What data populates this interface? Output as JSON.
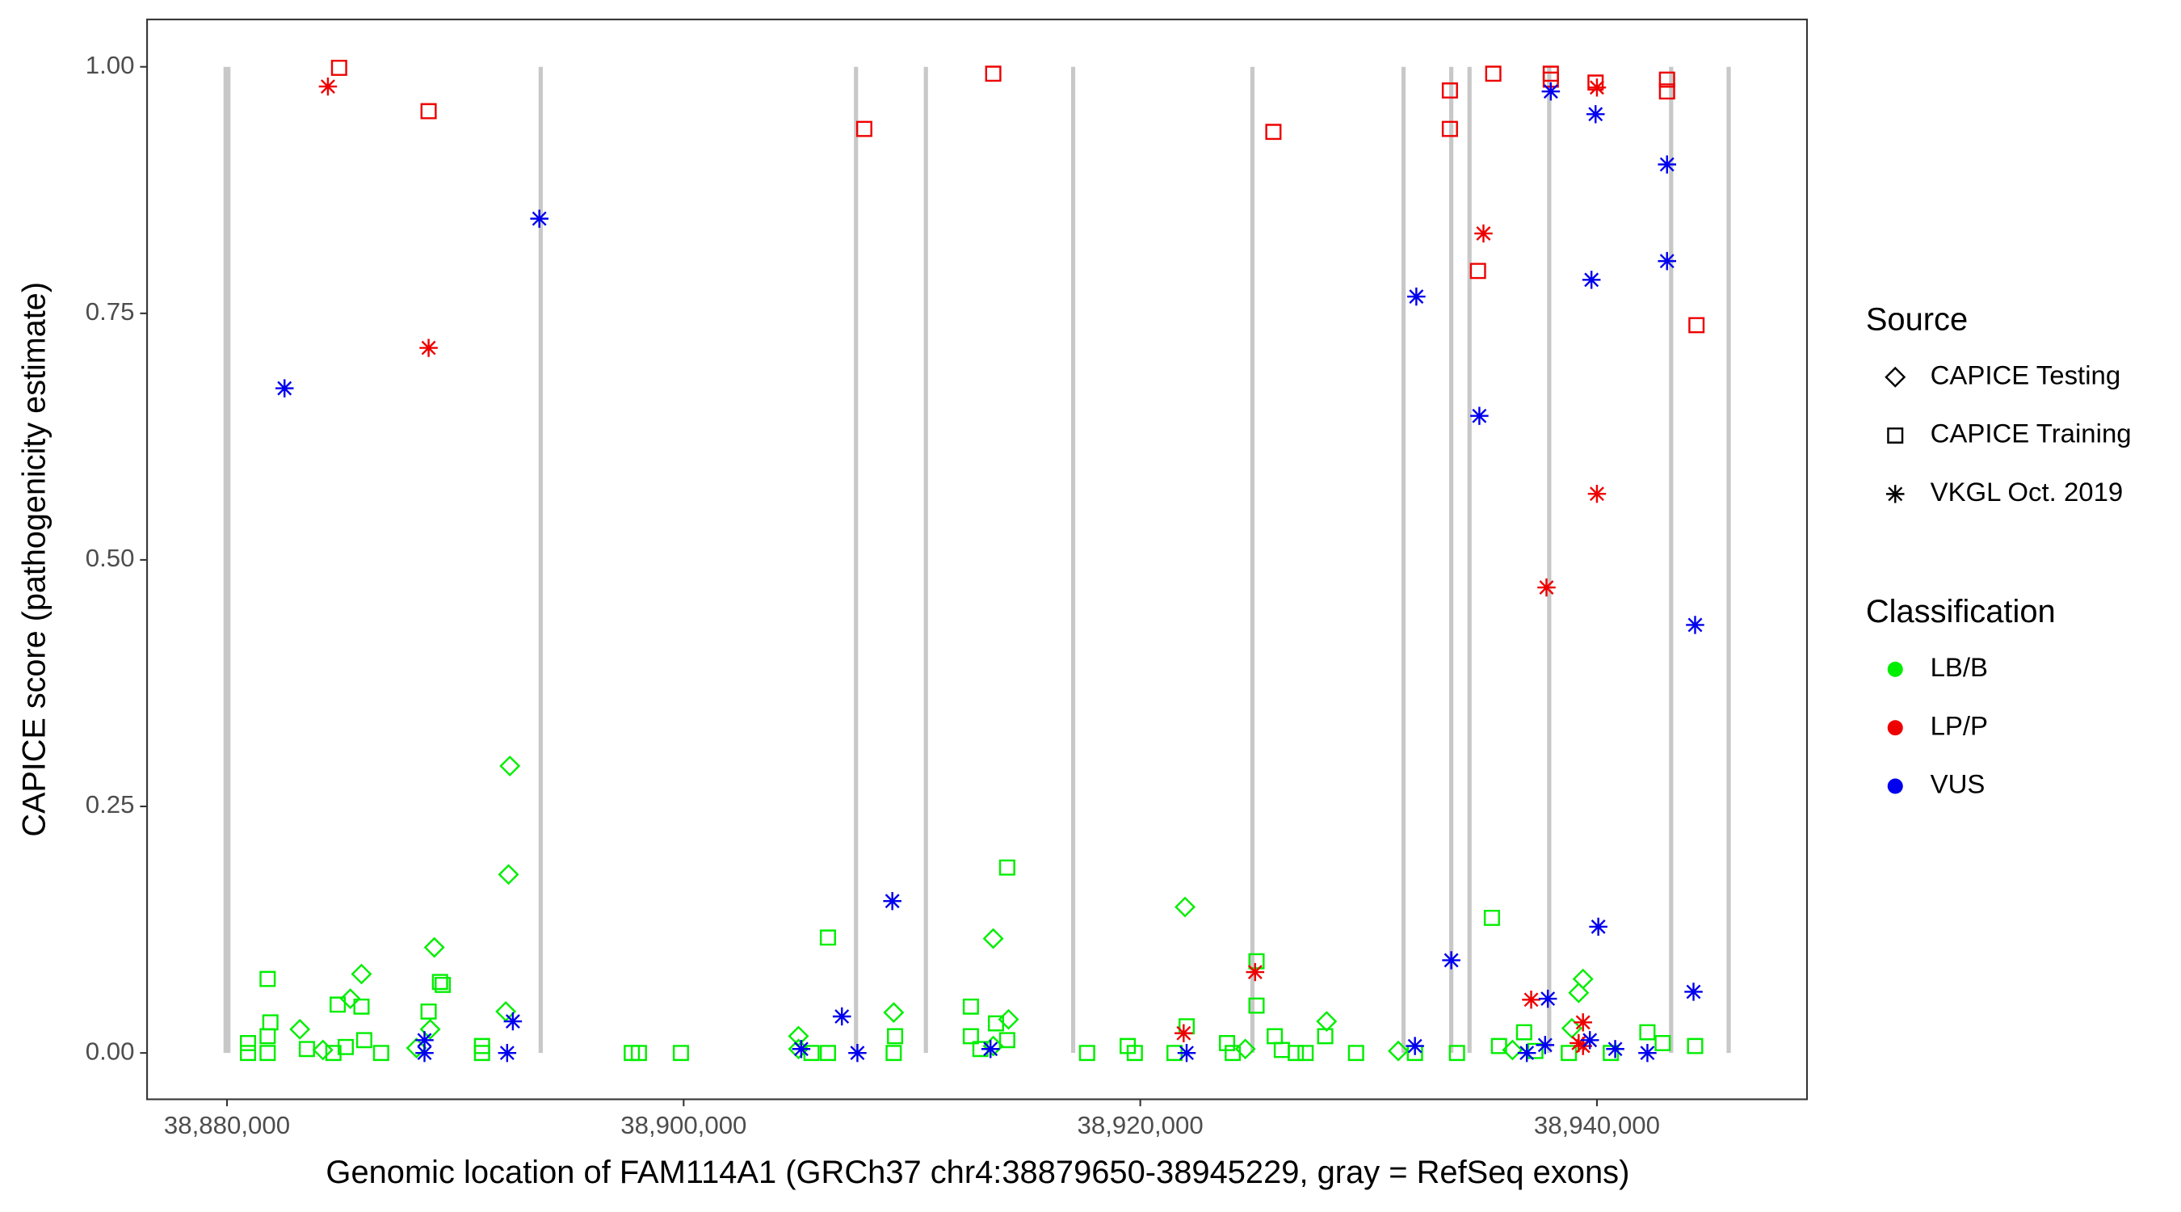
{
  "chart_data": {
    "type": "scatter",
    "xlabel": "Genomic location of FAM114A1 (GRCh37 chr4:38879650-38945229, gray = RefSeq exons)",
    "ylabel": "CAPICE score (pathogenicity estimate)",
    "xlim": [
      38876500,
      38949200
    ],
    "ylim": [
      -0.047,
      1.048
    ],
    "xticks": [
      {
        "value": 38880000,
        "label": "38,880,000"
      },
      {
        "value": 38900000,
        "label": "38,900,000"
      },
      {
        "value": 38920000,
        "label": "38,920,000"
      },
      {
        "value": 38940000,
        "label": "38,940,000"
      }
    ],
    "yticks": [
      {
        "value": 0,
        "label": "0.00"
      },
      {
        "value": 0.25,
        "label": "0.25"
      },
      {
        "value": 0.5,
        "label": "0.50"
      },
      {
        "value": 0.75,
        "label": "0.75"
      },
      {
        "value": 1,
        "label": "1.00"
      }
    ],
    "grid": false,
    "exon_color": "#c8c8c8",
    "exons": [
      38880000,
      38893740,
      38907550,
      38910610,
      38917060,
      38924910,
      38931530,
      38933620,
      38934420,
      38937910,
      38943250,
      38945770
    ],
    "legend": {
      "source": {
        "title": "Source",
        "items": [
          {
            "name": "CAPICE Testing",
            "shape": "diamond"
          },
          {
            "name": "CAPICE Training",
            "shape": "square"
          },
          {
            "name": "VKGL Oct. 2019",
            "shape": "asterisk"
          }
        ]
      },
      "classification": {
        "title": "Classification",
        "items": [
          {
            "name": "LB/B",
            "color": "#00ee00"
          },
          {
            "name": "LP/P",
            "color": "#ee0000"
          },
          {
            "name": "VUS",
            "color": "#0000ee"
          }
        ]
      }
    },
    "series": [
      {
        "source": "CAPICE Training",
        "classification": "LB/B",
        "x": [
          38881780,
          38881900,
          38881780,
          38880920,
          38880920,
          38881780,
          38884850,
          38885890,
          38886010,
          38888830,
          38889330,
          38889450,
          38891170,
          38891170,
          38906320,
          38912580,
          38912580,
          38913680,
          38914170,
          38914170,
          38909260,
          38909200,
          38906320,
          38897730,
          38898040,
          38899880,
          38917670,
          38919450,
          38919760,
          38922030,
          38923800,
          38925090,
          38925090,
          38925890,
          38927240,
          38928100,
          38929450,
          38932030,
          38933870,
          38935400,
          38936810,
          38942210,
          38942880,
          38944300,
          38940610,
          38935710,
          38884660,
          38886750,
          38926810,
          38924050,
          38938770,
          38883500,
          38885200,
          38905600,
          38913000,
          38921500,
          38926200,
          38937300
        ],
        "y": [
          0.075,
          0.031,
          0.017,
          0.01,
          0,
          0,
          0.049,
          0.047,
          0.013,
          0.042,
          0.072,
          0.069,
          0.007,
          0,
          0.117,
          0.047,
          0.017,
          0.03,
          0.188,
          0.013,
          0.017,
          0,
          0,
          0,
          0,
          0,
          0,
          0.007,
          0,
          0.027,
          0.01,
          0.093,
          0.048,
          0.017,
          0,
          0.017,
          0,
          0,
          0,
          0.137,
          0.021,
          0.021,
          0.01,
          0.007,
          0,
          0.007,
          0,
          0,
          0,
          0,
          0,
          0.004,
          0.006,
          0,
          0.004,
          0,
          0.003,
          0.002
        ]
      },
      {
        "source": "CAPICE Training",
        "classification": "LP/P",
        "x": [
          38884910,
          38888830,
          38907910,
          38913560,
          38925830,
          38933560,
          38933560,
          38935460,
          38937980,
          38937980,
          38934790,
          38939940,
          38943070,
          38943070,
          38944360
        ],
        "y": [
          0.999,
          0.955,
          0.937,
          0.993,
          0.934,
          0.976,
          0.937,
          0.993,
          0.993,
          0.987,
          0.793,
          0.984,
          0.987,
          0.975,
          0.738
        ]
      },
      {
        "source": "CAPICE Testing",
        "classification": "LB/B",
        "x": [
          38892390,
          38892330,
          38889080,
          38885890,
          38885400,
          38883190,
          38892210,
          38888900,
          38913560,
          38914230,
          38909200,
          38921960,
          38928160,
          38939390,
          38939200,
          38938900,
          38905030,
          38905030,
          38913560,
          38884200,
          38888300,
          38924600,
          38931300,
          38936300
        ],
        "y": [
          0.291,
          0.181,
          0.107,
          0.08,
          0.055,
          0.024,
          0.042,
          0.024,
          0.116,
          0.034,
          0.041,
          0.148,
          0.032,
          0.075,
          0.061,
          0.025,
          0.017,
          0.004,
          0.007,
          0.003,
          0.005,
          0.004,
          0.002,
          0.003
        ]
      },
      {
        "source": "VKGL Oct. 2019",
        "classification": "LP/P",
        "x": [
          38884420,
          38888830,
          38935030,
          38940000,
          38937790,
          38937120,
          38940000,
          38925030,
          38921900,
          38939390,
          38939200,
          38939390
        ],
        "y": [
          0.98,
          0.715,
          0.831,
          0.567,
          0.472,
          0.054,
          0.979,
          0.082,
          0.02,
          0.031,
          0.01,
          0.007
        ]
      },
      {
        "source": "VKGL Oct. 2019",
        "classification": "VUS",
        "x": [
          38882520,
          38893680,
          38932090,
          38934850,
          38937980,
          38939940,
          38939760,
          38943070,
          38943070,
          38944300,
          38940060,
          38933620,
          38909140,
          38906930,
          38937850,
          38944230,
          38892520,
          38888650,
          38888650,
          38892270,
          38907610,
          38922030,
          38932030,
          38936930,
          38937730,
          38939690,
          38940800,
          38942210,
          38905150,
          38913440
        ],
        "y": [
          0.674,
          0.846,
          0.767,
          0.646,
          0.975,
          0.952,
          0.784,
          0.901,
          0.803,
          0.434,
          0.128,
          0.094,
          0.154,
          0.037,
          0.055,
          0.062,
          0.032,
          0.013,
          0,
          0,
          0,
          0,
          0.007,
          0,
          0.008,
          0.013,
          0.004,
          0,
          0.004,
          0.004
        ]
      }
    ]
  }
}
